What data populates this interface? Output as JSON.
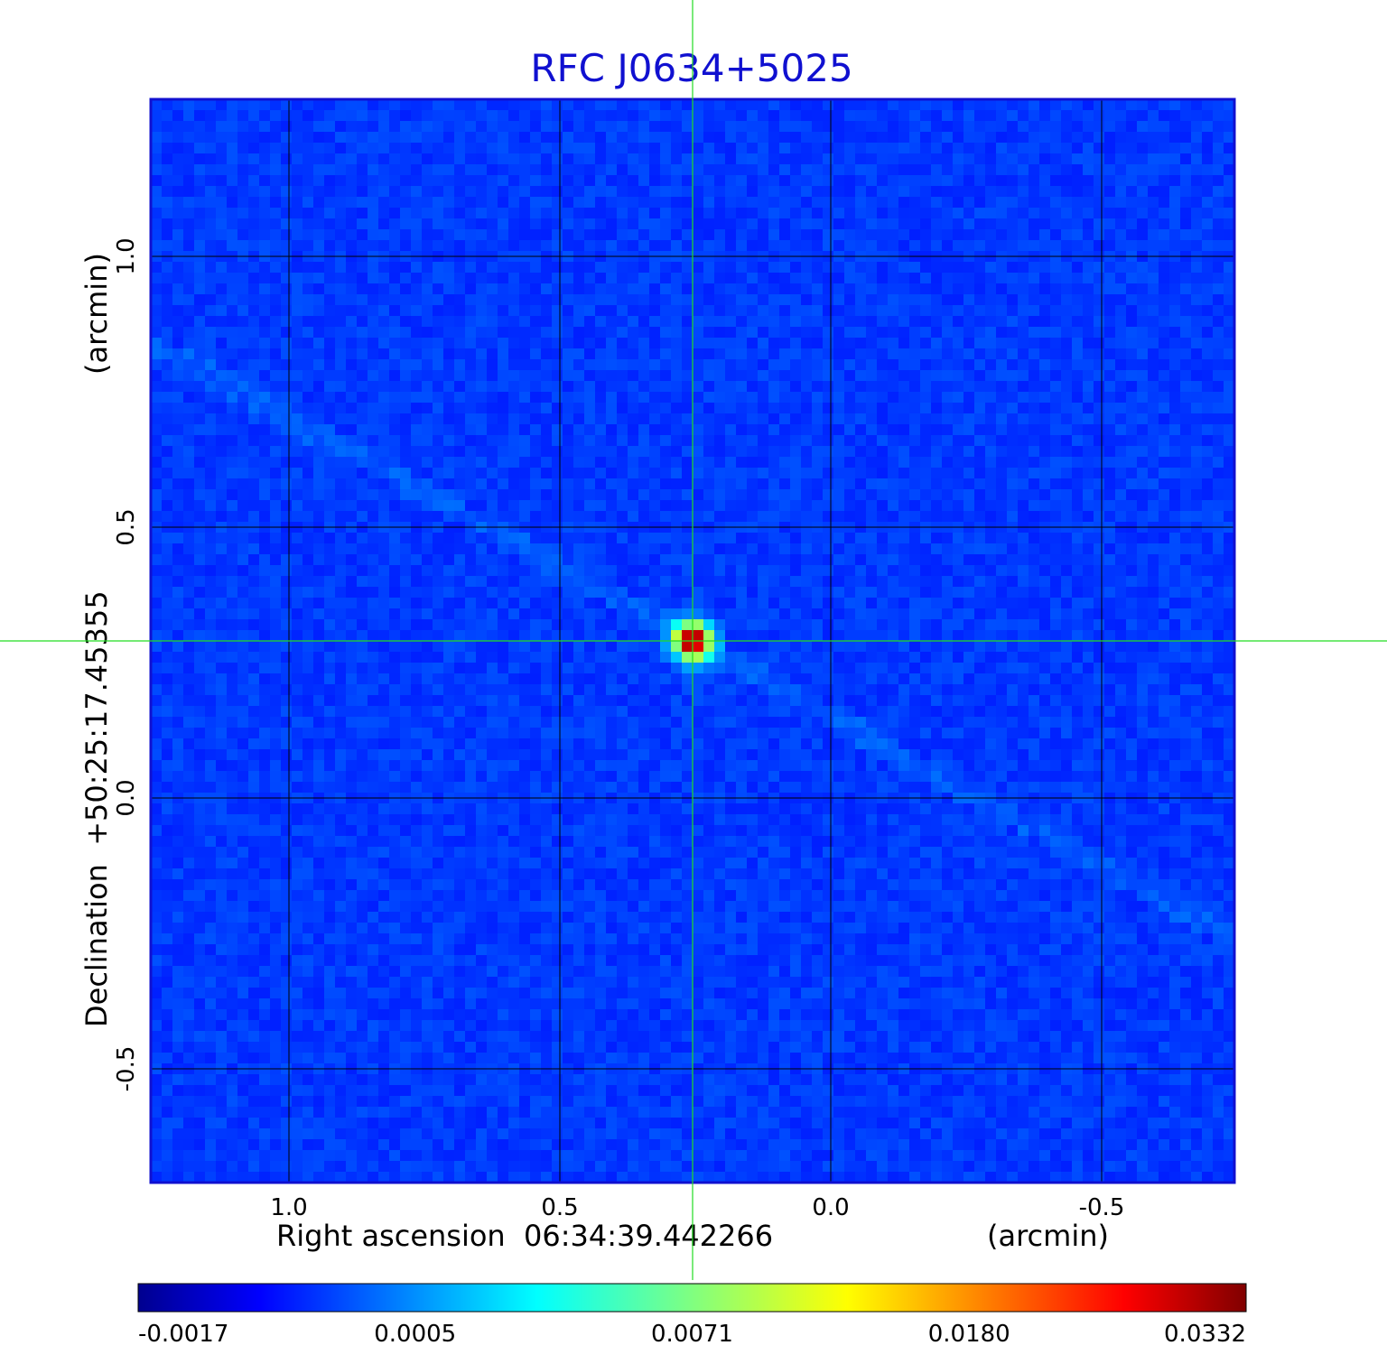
{
  "chart_data": {
    "type": "heatmap",
    "title": "RFC J0634+5025",
    "xlabel": "Right ascension  06:34:39.442266",
    "xunit": "(arcmin)",
    "ylabel": "Declination  +50:25:17.45355",
    "yunit": "(arcmin)",
    "x_ticks": [
      "1.0",
      "0.5",
      "0.0",
      "-0.5"
    ],
    "y_ticks": [
      "1.0",
      "0.5",
      "0.0",
      "-0.5"
    ],
    "x_tick_values": [
      1.0,
      0.5,
      0.0,
      -0.5
    ],
    "y_tick_values": [
      1.0,
      0.5,
      0.0,
      -0.5
    ],
    "xlim": [
      1.255,
      -0.745
    ],
    "ylim": [
      -0.71,
      1.29
    ],
    "grid": true,
    "crosshair": {
      "x": 0.255,
      "y": 0.29
    },
    "source_peak": {
      "x": 0.255,
      "y": 0.29
    },
    "colorbar": {
      "orientation": "horizontal",
      "position": "bottom",
      "colormap": "jet",
      "tick_labels": [
        "-0.0017",
        "0.0005",
        "0.0071",
        "0.0180",
        "0.0332"
      ],
      "tick_values": [
        -0.0017,
        0.0005,
        0.0071,
        0.018,
        0.0332
      ],
      "range": [
        -0.0017,
        0.0332
      ]
    },
    "background_level": 0.0002
  },
  "colors": {
    "title": "#1010d0",
    "frame": "#1010d0",
    "grid": "#000000",
    "crosshair": "#22dd22"
  }
}
